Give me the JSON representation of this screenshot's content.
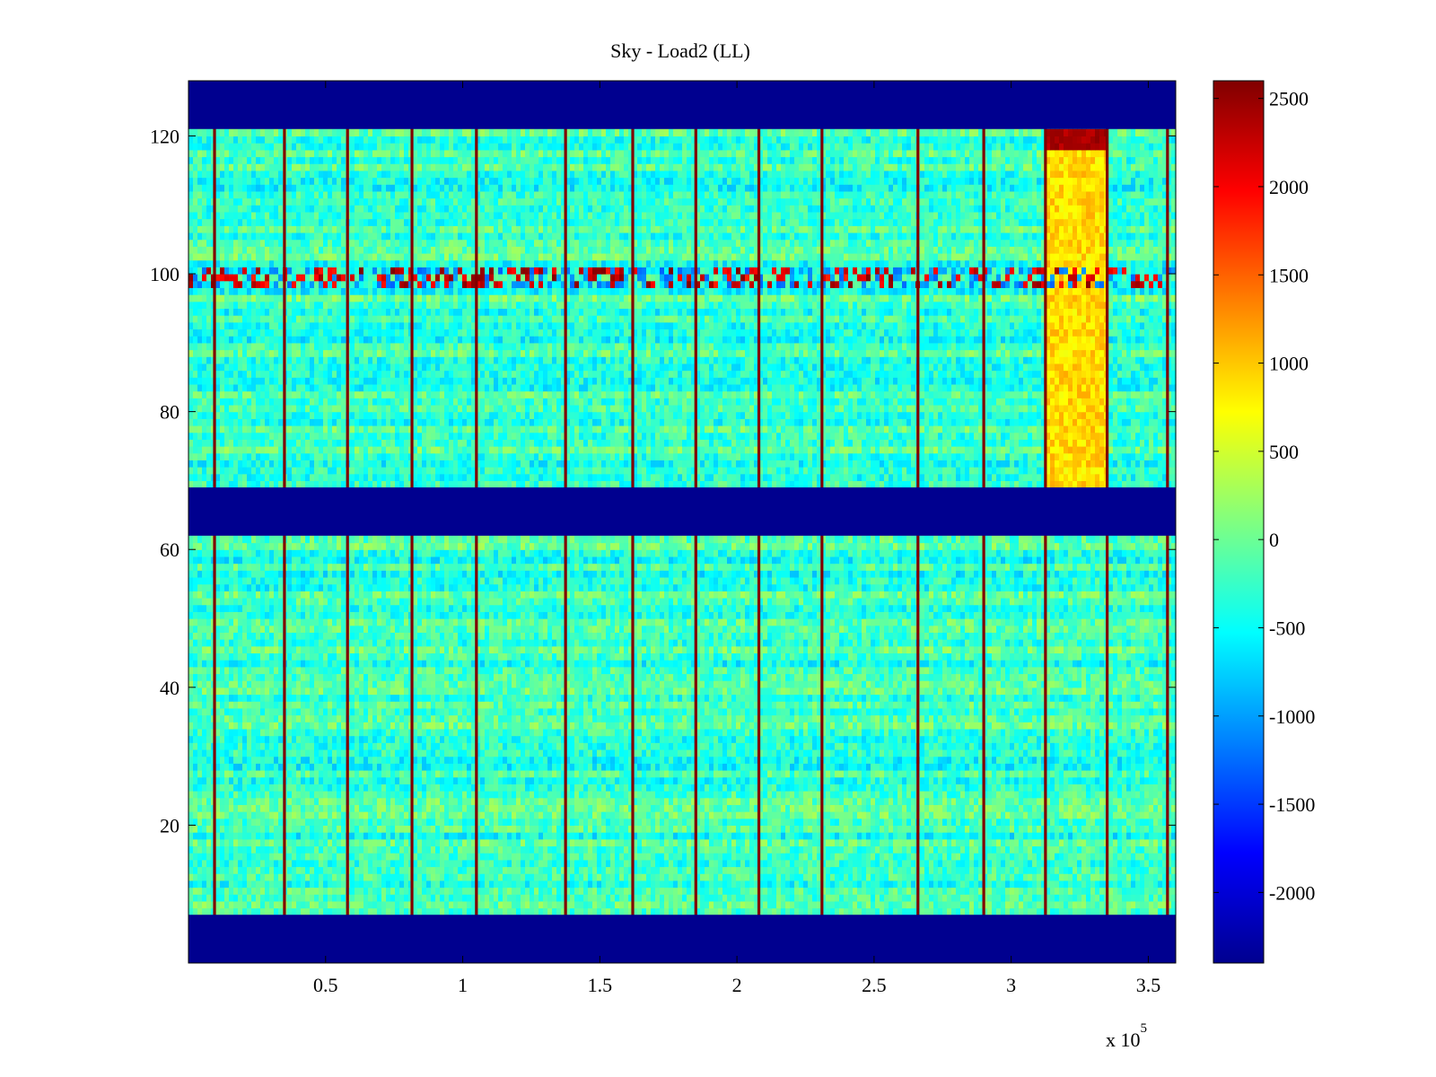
{
  "chart_data": {
    "type": "heatmap",
    "title": "Sky - Load2 (LL)",
    "xlabel": "",
    "ylabel": "",
    "x_exponent_label": "x 10",
    "x_exponent_power": "5",
    "xlim": [
      0,
      360000
    ],
    "ylim": [
      0,
      128
    ],
    "xticks": [
      50000,
      100000,
      150000,
      200000,
      250000,
      300000,
      350000
    ],
    "xtick_labels": [
      "0.5",
      "1",
      "1.5",
      "2",
      "2.5",
      "3",
      "3.5"
    ],
    "yticks": [
      20,
      40,
      60,
      80,
      100,
      120
    ],
    "ytick_labels": [
      "20",
      "40",
      "60",
      "80",
      "100",
      "120"
    ],
    "colormap": "jet",
    "clim": [
      -2400,
      2600
    ],
    "colorbar": {
      "ticks": [
        -2000,
        -1500,
        -1000,
        -500,
        0,
        500,
        1000,
        1500,
        2000,
        2500
      ],
      "tick_labels": [
        "-2000",
        "-1500",
        "-1000",
        "-500",
        "0",
        "500",
        "1000",
        "1500",
        "2000",
        "2500"
      ],
      "colors": [
        "#00008f",
        "#0000ff",
        "#0080ff",
        "#00ffff",
        "#80ff80",
        "#ffff00",
        "#ff8000",
        "#ff0000",
        "#800000"
      ]
    },
    "masked_rows": [
      [
        0,
        7
      ],
      [
        62,
        69
      ],
      [
        121,
        128
      ]
    ],
    "masked_color": "#00008f",
    "background_level": -250,
    "vertical_spike_columns_x": [
      9500,
      35000,
      58000,
      81500,
      105000,
      137500,
      162000,
      185000,
      208000,
      231000,
      266000,
      290000,
      312500,
      335000,
      357000
    ],
    "spike_value": 2600,
    "horizontal_feature_rows": [
      [
        98,
        101
      ]
    ],
    "hot_region": {
      "x": [
        312500,
        335000
      ],
      "y": [
        69,
        121
      ],
      "value": 900,
      "top_rows": [
        118,
        121
      ],
      "top_value": 2400
    }
  }
}
